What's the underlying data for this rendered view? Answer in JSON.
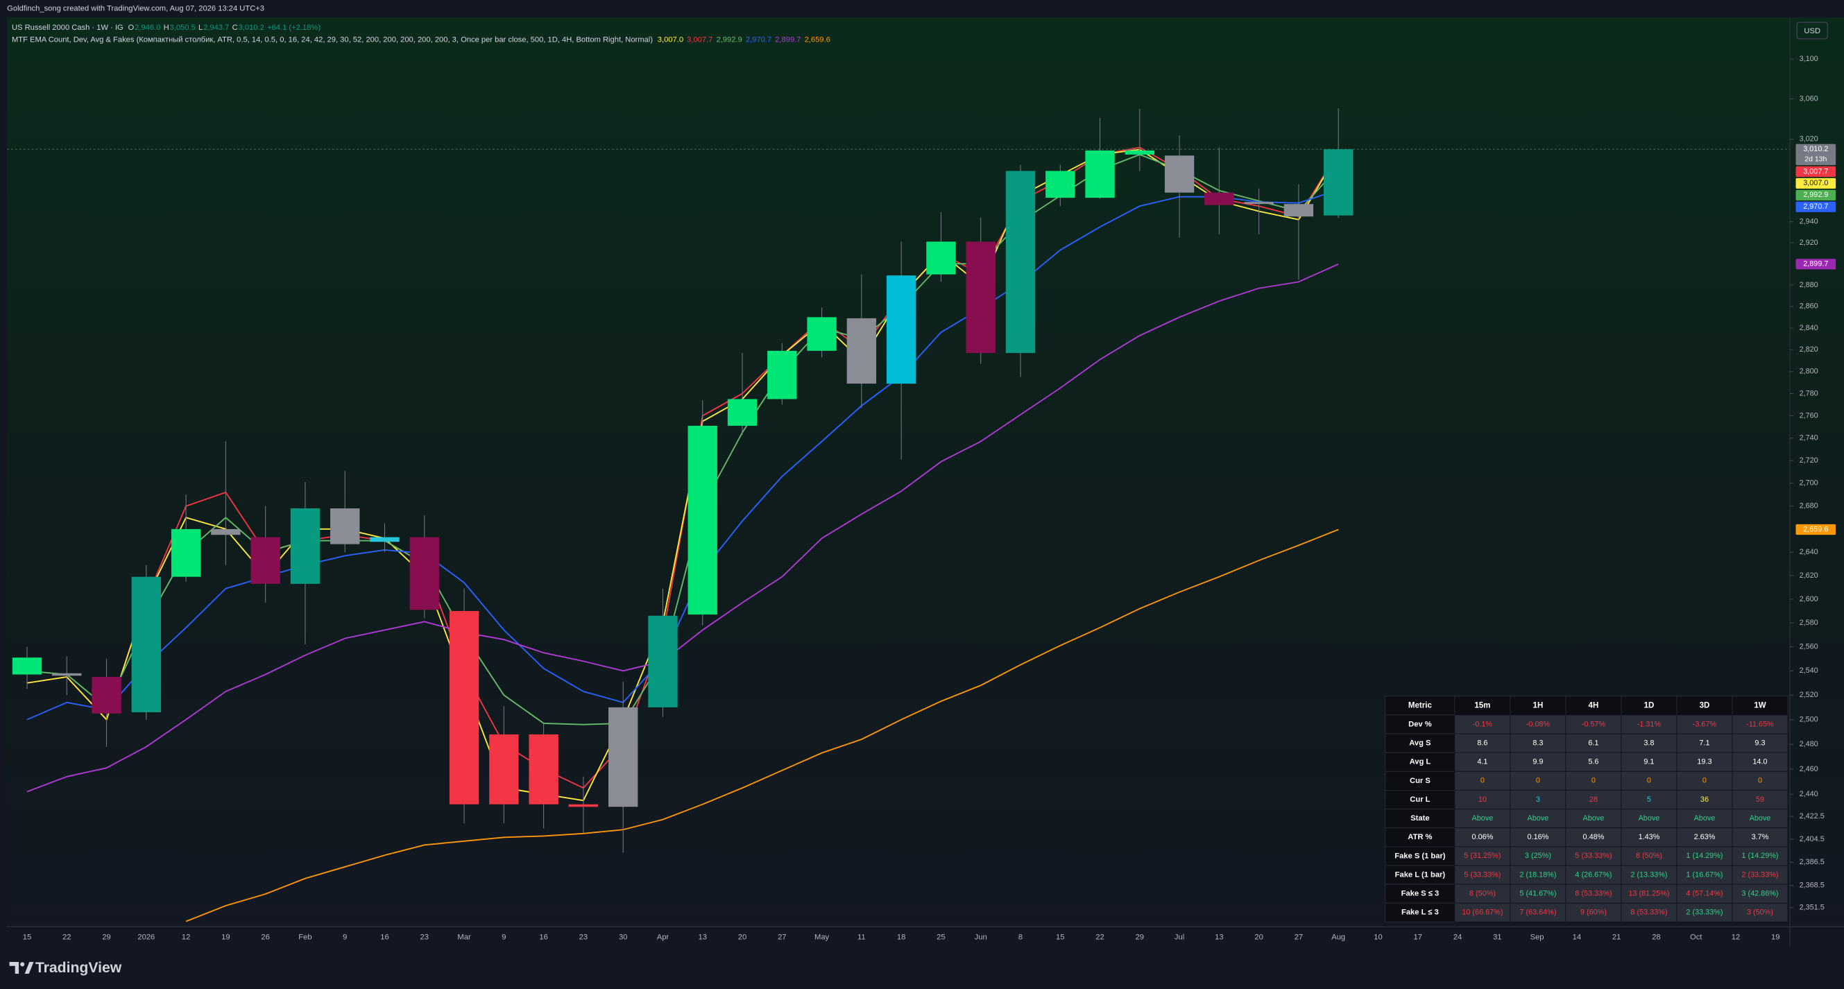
{
  "chart_data": {
    "type": "candlestick",
    "credit": "Goldfinch_song created with TradingView.com, Aug 07, 2026 13:24 UTC+3",
    "symbol": "US Russell 2000 Cash · 1W · IG",
    "ohlc": [
      {
        "key": "O",
        "label": "2,946.0"
      },
      {
        "key": "H",
        "label": "3,050.5"
      },
      {
        "key": "L",
        "label": "2,943.7"
      },
      {
        "key": "C",
        "label": "3,010.2"
      }
    ],
    "change": "+64.1 (+2.18%)",
    "indicator": {
      "name": "MTF EMA Count, Dev, Avg & Fakes (Компактный столбик, ATR, 0.5, 14, 0.5, 0, 16, 24, 42, 29, 30, 52, 200, 200, 200, 200, 200, 3, Once per bar close, 500, 1D, 4H, Bottom Right, Normal)",
      "values": [
        {
          "label": "3,007.0",
          "color": "#ffeb3b"
        },
        {
          "label": "3,007.7",
          "color": "#f23645"
        },
        {
          "label": "2,992.9",
          "color": "#66bb6a"
        },
        {
          "label": "2,970.7",
          "color": "#2962ff"
        },
        {
          "label": "2,899.7",
          "color": "#b03ad6"
        },
        {
          "label": "2,659.6",
          "color": "#ff9800"
        }
      ]
    },
    "currency": "USD",
    "brand": "TradingView",
    "log_scale": true,
    "grid": false,
    "ylim": [
      2337,
      3142
    ],
    "yticks": [
      {
        "value": 3100,
        "label": "3,100"
      },
      {
        "value": 3060,
        "label": "3,060"
      },
      {
        "value": 3020,
        "label": "3,020"
      },
      {
        "value": 2940,
        "label": "2,940"
      },
      {
        "value": 2920,
        "label": "2,920"
      },
      {
        "value": 2880,
        "label": "2,880"
      },
      {
        "value": 2860,
        "label": "2,860"
      },
      {
        "value": 2840,
        "label": "2,840"
      },
      {
        "value": 2820,
        "label": "2,820"
      },
      {
        "value": 2800,
        "label": "2,800"
      },
      {
        "value": 2780,
        "label": "2,780"
      },
      {
        "value": 2760,
        "label": "2,760"
      },
      {
        "value": 2740,
        "label": "2,740"
      },
      {
        "value": 2720,
        "label": "2,720"
      },
      {
        "value": 2700,
        "label": "2,700"
      },
      {
        "value": 2680,
        "label": "2,680"
      },
      {
        "value": 2640,
        "label": "2,640"
      },
      {
        "value": 2620,
        "label": "2,620"
      },
      {
        "value": 2600,
        "label": "2,600"
      },
      {
        "value": 2580,
        "label": "2,580"
      },
      {
        "value": 2560,
        "label": "2,560"
      },
      {
        "value": 2540,
        "label": "2,540"
      },
      {
        "value": 2520,
        "label": "2,520"
      },
      {
        "value": 2500,
        "label": "2,500"
      },
      {
        "value": 2480,
        "label": "2,480"
      },
      {
        "value": 2460,
        "label": "2,460"
      },
      {
        "value": 2440,
        "label": "2,440"
      },
      {
        "value": 2422.5,
        "label": "2,422.5"
      },
      {
        "value": 2404.5,
        "label": "2,404.5"
      },
      {
        "value": 2386.5,
        "label": "2,386.5"
      },
      {
        "value": 2368.5,
        "label": "2,368.5"
      },
      {
        "value": 2351.5,
        "label": "2,351.5"
      }
    ],
    "categories": [
      "15",
      "22",
      "29",
      "2026",
      "12",
      "19",
      "26",
      "Feb",
      "9",
      "16",
      "23",
      "Mar",
      "9",
      "16",
      "23",
      "30",
      "Apr",
      "13",
      "20",
      "27",
      "May",
      "11",
      "18",
      "25",
      "Jun",
      "8",
      "15",
      "22",
      "29",
      "Jul",
      "13",
      "20",
      "27",
      "Aug",
      "10",
      "17",
      "24",
      "31",
      "Sep",
      "14",
      "21",
      "28",
      "Oct",
      "12",
      "19"
    ],
    "candles": {
      "open": [
        2537,
        2538,
        2535,
        2506,
        2619,
        2655,
        2653,
        2613,
        2647,
        2649,
        2653,
        2590,
        2488,
        2488,
        2432,
        2430,
        2510,
        2587,
        2751,
        2775,
        2819,
        2849,
        2789,
        2890,
        2921,
        2817,
        2963,
        2963,
        3005,
        3004,
        2968,
        2959,
        2957,
        2946.0,
        null,
        null,
        null,
        null,
        null,
        null,
        null,
        null,
        null,
        null,
        null
      ],
      "high": [
        2560,
        2552,
        2550,
        2629,
        2690,
        2737,
        2680,
        2701,
        2711,
        2665,
        2672,
        2609,
        2511,
        2497,
        2454,
        2531,
        2609,
        2774,
        2817,
        2826,
        2859,
        2890,
        2921,
        2949,
        2944,
        2995,
        2995,
        3041,
        3050,
        3024,
        3012,
        2972,
        2976,
        3050.5,
        null,
        null,
        null,
        null,
        null,
        null,
        null,
        null,
        null,
        null,
        null
      ],
      "low": [
        2525,
        2520,
        2478,
        2500,
        2615,
        2629,
        2597,
        2562,
        2640,
        2640,
        2584,
        2417,
        2417,
        2413,
        2409,
        2394,
        2502,
        2578,
        2743,
        2770,
        2813,
        2767,
        2721,
        2883,
        2807,
        2795,
        2955,
        2962,
        2989,
        2925,
        2928,
        2928,
        2885,
        2943.7,
        null,
        null,
        null,
        null,
        null,
        null,
        null,
        null,
        null,
        null,
        null
      ],
      "close": [
        2551,
        2536,
        2505,
        2619,
        2660,
        2660,
        2613,
        2678,
        2678,
        2653,
        2591,
        2432,
        2432,
        2432,
        2430,
        2510,
        2586,
        2751,
        2775,
        2819,
        2850,
        2789,
        2889,
        2921,
        2817,
        2989,
        2989,
        3009,
        3009,
        2968,
        2956,
        2957,
        2945,
        3010.2,
        null,
        null,
        null,
        null,
        null,
        null,
        null,
        null,
        null,
        null,
        null
      ],
      "colors": [
        "#00e676",
        "#8a8d96",
        "#880e4f",
        "#089981",
        "#00e676",
        "#8a8d96",
        "#880e4f",
        "#089981",
        "#8a8d96",
        "#26c6da",
        "#880e4f",
        "#f23645",
        "#f23645",
        "#f23645",
        "#f23645",
        "#8a8d96",
        "#089981",
        "#00e676",
        "#00e676",
        "#00e676",
        "#00e676",
        "#8a8d96",
        "#00bcd4",
        "#00e676",
        "#880e4f",
        "#089981",
        "#00e676",
        "#00e676",
        "#00e676",
        "#8a8d96",
        "#880e4f",
        "#8a8d96",
        "#8a8d96",
        "#089981",
        null,
        null,
        null,
        null,
        null,
        null,
        null,
        null,
        null,
        null,
        null
      ],
      "wick_color": "#787b86"
    },
    "series": [
      {
        "color": "#f23645",
        "values": [
          2530,
          2535,
          2500,
          2600,
          2680,
          2692,
          2640,
          2650,
          2655,
          2650,
          2630,
          2540,
          2480,
          2460,
          2445,
          2480,
          2570,
          2760,
          2780,
          2815,
          2848,
          2820,
          2870,
          2910,
          2890,
          2960,
          2980,
          3005,
          3012,
          2990,
          2962,
          2955,
          2945,
          3007.7,
          null,
          null,
          null,
          null,
          null,
          null,
          null,
          null,
          null,
          null,
          null
        ]
      },
      {
        "color": "#ffeb3b",
        "values": [
          2530,
          2535,
          2500,
          2600,
          2670,
          2660,
          2620,
          2660,
          2660,
          2652,
          2620,
          2530,
          2445,
          2440,
          2435,
          2500,
          2580,
          2755,
          2775,
          2815,
          2845,
          2810,
          2870,
          2910,
          2880,
          2965,
          2985,
          3005,
          3010,
          2985,
          2960,
          2950,
          2942,
          3007.0,
          null,
          null,
          null,
          null,
          null,
          null,
          null,
          null,
          null,
          null,
          null
        ]
      },
      {
        "color": "#66bb6a",
        "values": [
          2540,
          2537,
          2510,
          2580,
          2640,
          2670,
          2640,
          2650,
          2650,
          2650,
          2630,
          2570,
          2520,
          2497,
          2496,
          2497,
          2550,
          2680,
          2745,
          2800,
          2840,
          2830,
          2860,
          2900,
          2900,
          2940,
          2965,
          2990,
          3005,
          2990,
          2970,
          2960,
          2950,
          2992.9,
          null,
          null,
          null,
          null,
          null,
          null,
          null,
          null,
          null,
          null,
          null
        ]
      },
      {
        "color": "#2962ff",
        "values": [
          2500,
          2514,
          2508,
          2545,
          2576,
          2609,
          2619,
          2629,
          2637,
          2642,
          2639,
          2614,
          2574,
          2542,
          2523,
          2514,
          2550,
          2624,
          2667,
          2706,
          2737,
          2769,
          2796,
          2836,
          2858,
          2882,
          2913,
          2935,
          2955,
          2964,
          2964,
          2959,
          2958,
          2970.7,
          null,
          null,
          null,
          null,
          null,
          null,
          null,
          null,
          null,
          null,
          null
        ]
      },
      {
        "color": "#b03ad6",
        "values": [
          2442,
          2454,
          2461,
          2478,
          2500,
          2523,
          2537,
          2553,
          2567,
          2574,
          2581,
          2572,
          2566,
          2555,
          2548,
          2540,
          2548,
          2574,
          2597,
          2619,
          2652,
          2673,
          2693,
          2719,
          2737,
          2761,
          2785,
          2811,
          2833,
          2850,
          2865,
          2877,
          2883,
          2899.7,
          null,
          null,
          null,
          null,
          null,
          null,
          null,
          null,
          null,
          null,
          null
        ]
      },
      {
        "color": "#ff9800",
        "values": [
          null,
          null,
          null,
          null,
          2341,
          2353,
          2362,
          2374,
          2383,
          2392,
          2400,
          2403,
          2406,
          2407,
          2409,
          2412,
          2420,
          2432,
          2445,
          2459,
          2473,
          2484,
          2500,
          2515,
          2528,
          2545,
          2561,
          2576,
          2592,
          2606,
          2619,
          2633,
          2646,
          2659.6,
          null,
          null,
          null,
          null,
          null,
          null,
          null,
          null,
          null,
          null,
          null
        ]
      }
    ],
    "price_tags": [
      {
        "value": 3010.2,
        "label": "3,010.2",
        "color": "#787b86",
        "countdown": "2d 13h"
      },
      {
        "value": 3007.7,
        "label": "3,007.7",
        "color": "#f23645"
      },
      {
        "value": 3007.0,
        "label": "3,007.0",
        "color": "#ffeb3b"
      },
      {
        "value": 2992.9,
        "label": "2,992.9",
        "color": "#4caf50"
      },
      {
        "value": 2970.7,
        "label": "2,970.7",
        "color": "#2962ff"
      },
      {
        "value": 2899.7,
        "label": "2,899.7",
        "color": "#9c27b0"
      },
      {
        "value": 2659.6,
        "label": "2,659.6",
        "color": "#ff9800"
      }
    ],
    "table": {
      "header": [
        "Metric",
        "15m",
        "1H",
        "4H",
        "1D",
        "3D",
        "1W"
      ],
      "rows": [
        {
          "label": "Dev %",
          "cells": [
            "-0.1%",
            "-0.08%",
            "-0.57%",
            "-1.31%",
            "-3.67%",
            "-11.65%"
          ],
          "colors": [
            "#f23645",
            "#f23645",
            "#f23645",
            "#f23645",
            "#f23645",
            "#f23645"
          ]
        },
        {
          "label": "Avg S",
          "cells": [
            "8.6",
            "8.3",
            "6.1",
            "3.8",
            "7.1",
            "9.3"
          ],
          "colors": [
            "#ffffff",
            "#ffffff",
            "#ffffff",
            "#ffffff",
            "#ffffff",
            "#ffffff"
          ]
        },
        {
          "label": "Avg L",
          "cells": [
            "4.1",
            "9.9",
            "5.6",
            "9.1",
            "19.3",
            "14.0"
          ],
          "colors": [
            "#ffffff",
            "#ffffff",
            "#ffffff",
            "#ffffff",
            "#ffffff",
            "#ffffff"
          ]
        },
        {
          "label": "Cur S",
          "cells": [
            "0",
            "0",
            "0",
            "0",
            "0",
            "0"
          ],
          "colors": [
            "#ff9800",
            "#ff9800",
            "#ff9800",
            "#ff9800",
            "#ff9800",
            "#ff9800"
          ]
        },
        {
          "label": "Cur L",
          "cells": [
            "10",
            "3",
            "28",
            "5",
            "36",
            "59"
          ],
          "colors": [
            "#f23645",
            "#26c6da",
            "#f23645",
            "#26c6da",
            "#ffeb3b",
            "#f23645"
          ]
        },
        {
          "label": "State",
          "cells": [
            "Above",
            "Above",
            "Above",
            "Above",
            "Above",
            "Above"
          ],
          "colors": [
            "#2ed189",
            "#2ed189",
            "#2ed189",
            "#2ed189",
            "#2ed189",
            "#2ed189"
          ]
        },
        {
          "label": "ATR %",
          "cells": [
            "0.06%",
            "0.16%",
            "0.48%",
            "1.43%",
            "2.63%",
            "3.7%"
          ],
          "colors": [
            "#ffffff",
            "#ffffff",
            "#ffffff",
            "#ffffff",
            "#ffffff",
            "#ffffff"
          ]
        },
        {
          "label": "Fake S (1 bar)",
          "cells": [
            "5 (31.25%)",
            "3 (25%)",
            "5 (33.33%)",
            "8 (50%)",
            "1 (14.29%)",
            "1 (14.29%)"
          ],
          "colors": [
            "#f23645",
            "#2ed189",
            "#f23645",
            "#f23645",
            "#2ed189",
            "#2ed189"
          ]
        },
        {
          "label": "Fake L (1 bar)",
          "cells": [
            "5 (33.33%)",
            "2 (18.18%)",
            "4 (26.67%)",
            "2 (13.33%)",
            "1 (16.67%)",
            "2 (33.33%)"
          ],
          "colors": [
            "#f23645",
            "#2ed189",
            "#2ed189",
            "#2ed189",
            "#2ed189",
            "#f23645"
          ]
        },
        {
          "label": "Fake S ≤ 3",
          "cells": [
            "8 (50%)",
            "5 (41.67%)",
            "8 (53.33%)",
            "13 (81.25%)",
            "4 (57.14%)",
            "3 (42.86%)"
          ],
          "colors": [
            "#f23645",
            "#2ed189",
            "#f23645",
            "#f23645",
            "#f23645",
            "#2ed189"
          ]
        },
        {
          "label": "Fake L ≤ 3",
          "cells": [
            "10 (66.67%)",
            "7 (63.64%)",
            "9 (60%)",
            "8 (53.33%)",
            "2 (33.33%)",
            "3 (50%)"
          ],
          "colors": [
            "#f23645",
            "#f23645",
            "#f23645",
            "#f23645",
            "#2ed189",
            "#f23645"
          ]
        }
      ]
    }
  }
}
